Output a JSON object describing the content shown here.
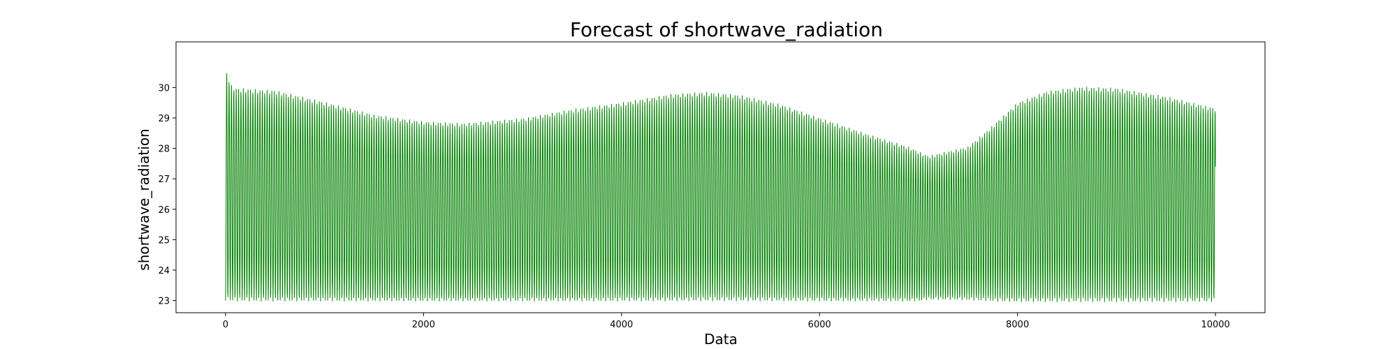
{
  "chart_data": {
    "type": "line",
    "title": "Forecast of shortwave_radiation",
    "xlabel": "Data",
    "ylabel": "shortwave_radiation",
    "xlim": [
      -500,
      10500
    ],
    "ylim": [
      22.6,
      31.5
    ],
    "x_ticks": [
      0,
      2000,
      4000,
      6000,
      8000,
      10000
    ],
    "y_ticks": [
      23,
      24,
      25,
      26,
      27,
      28,
      29,
      30
    ],
    "grid": false,
    "legend": "none",
    "series": [
      {
        "color": "#008000",
        "period": 24,
        "x_range": [
          0,
          10000
        ],
        "envelope_upper": {
          "x": [
            0,
            20,
            50,
            100,
            500,
            1000,
            1500,
            2000,
            2400,
            3000,
            3500,
            4000,
            4500,
            4850,
            5200,
            5600,
            6000,
            6500,
            6900,
            7100,
            7500,
            7700,
            8000,
            8300,
            8650,
            9000,
            9500,
            10000
          ],
          "y": [
            30.5,
            30.5,
            30.1,
            29.98,
            29.9,
            29.52,
            29.1,
            28.88,
            28.82,
            28.98,
            29.28,
            29.5,
            29.78,
            29.85,
            29.75,
            29.45,
            29.0,
            28.45,
            28.05,
            27.75,
            28.05,
            28.6,
            29.5,
            29.88,
            30.02,
            29.98,
            29.7,
            29.32
          ]
        },
        "envelope_lower": {
          "x": [
            0,
            100,
            1000,
            2000,
            3000,
            4000,
            5000,
            6000,
            7000,
            7100,
            7500,
            7800,
            8000,
            9000,
            10000
          ],
          "y": [
            23.0,
            22.98,
            22.98,
            22.98,
            22.98,
            22.98,
            22.99,
            22.98,
            22.98,
            23.03,
            23.02,
            22.97,
            22.96,
            22.96,
            22.97
          ]
        },
        "end_value": 27.4
      }
    ]
  }
}
